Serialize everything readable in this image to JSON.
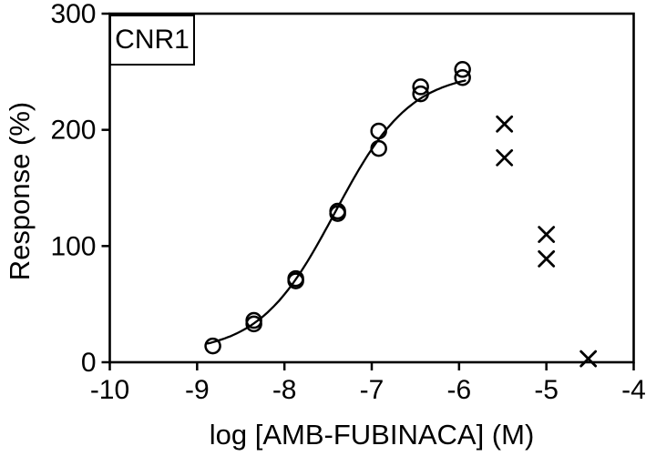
{
  "colors": {
    "ink": "#000000",
    "background": "#ffffff"
  },
  "receptor_label": "CNR1",
  "chart_data": {
    "type": "scatter",
    "title": "CNR1",
    "xlabel": "log [AMB-FUBINACA] (M)",
    "ylabel": "Response (%)",
    "xlim": [
      -10,
      -4
    ],
    "ylim": [
      0,
      300
    ],
    "x_ticks": [
      -10,
      -9,
      -8,
      -7,
      -6,
      -5,
      -4
    ],
    "y_ticks": [
      0,
      100,
      200,
      300
    ],
    "grid": false,
    "legend": "none",
    "series": [
      {
        "name": "agonist-response-circles",
        "marker": "circle",
        "points": [
          [
            -8.82,
            14
          ],
          [
            -8.35,
            36
          ],
          [
            -8.35,
            33
          ],
          [
            -7.87,
            72
          ],
          [
            -7.87,
            70
          ],
          [
            -7.39,
            130
          ],
          [
            -7.39,
            128
          ],
          [
            -6.92,
            199
          ],
          [
            -6.92,
            184
          ],
          [
            -6.44,
            237
          ],
          [
            -6.44,
            231
          ],
          [
            -5.96,
            252
          ],
          [
            -5.96,
            245
          ]
        ]
      },
      {
        "name": "high-concentration-excluded-x",
        "marker": "x",
        "points": [
          [
            -5.48,
            205
          ],
          [
            -5.48,
            176
          ],
          [
            -5.0,
            110
          ],
          [
            -5.0,
            89
          ],
          [
            -4.52,
            3
          ]
        ]
      }
    ],
    "fit_curve": {
      "model": "four-parameter-logistic",
      "bottom": 8,
      "top": 250,
      "logEC50": -7.42,
      "hill": 1.0,
      "x_start": -8.88,
      "x_end": -5.93
    }
  }
}
